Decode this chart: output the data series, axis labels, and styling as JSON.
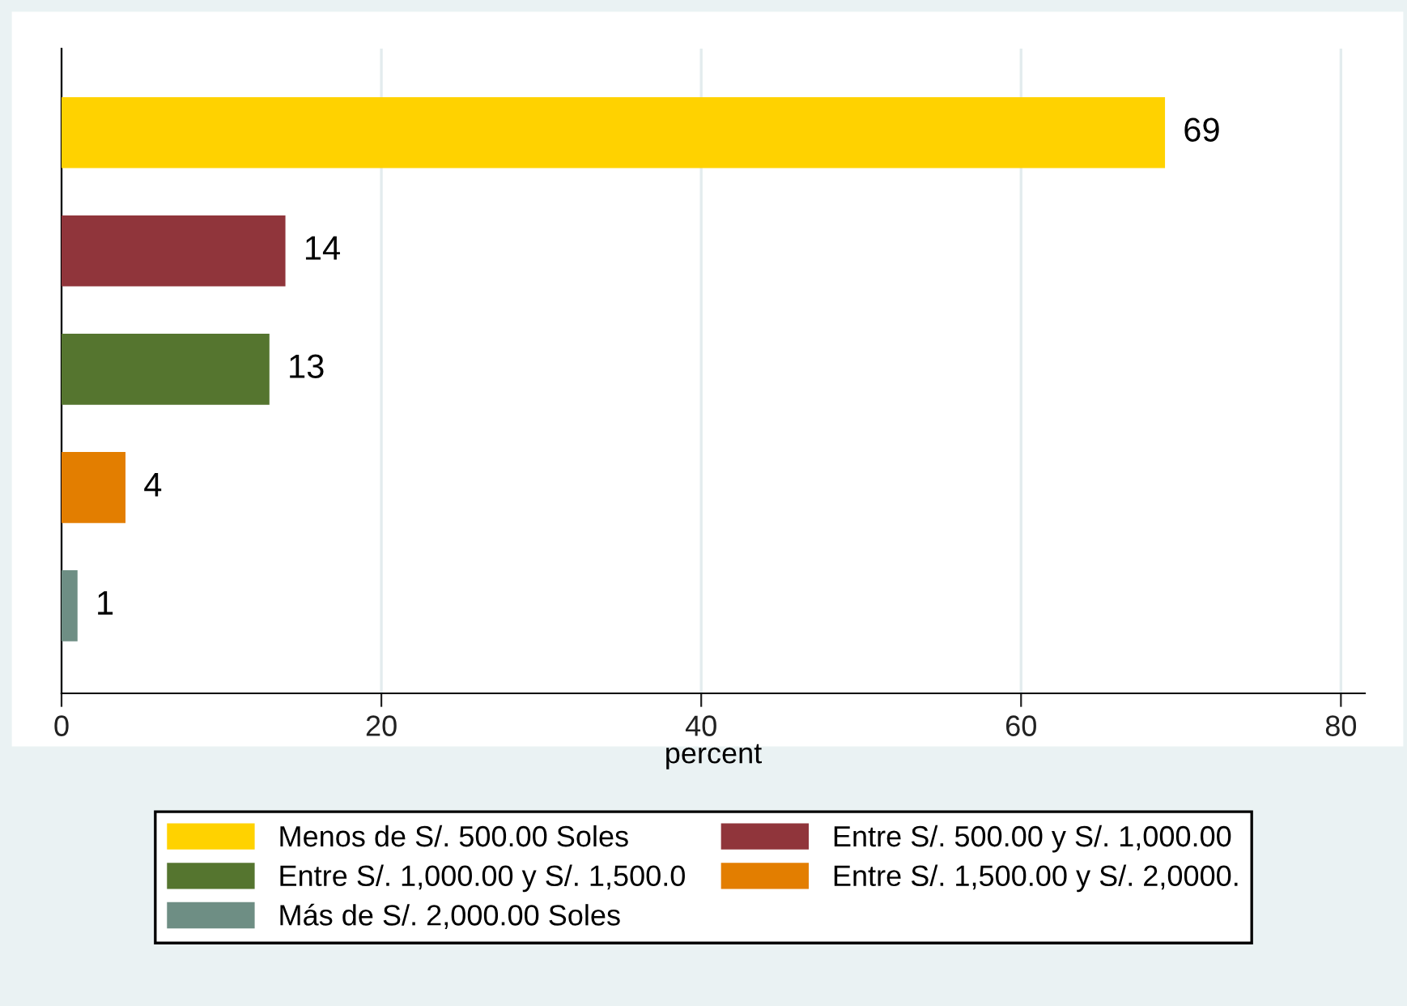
{
  "chart_data": {
    "type": "bar",
    "orientation": "horizontal",
    "xlabel": "percent",
    "categories": [
      null,
      null,
      null,
      null,
      null
    ],
    "series": [
      {
        "name": "Menos de S/. 500.00 Soles",
        "color": "#ffd200",
        "values": [
          69,
          null,
          null,
          null,
          null
        ]
      },
      {
        "name": "Entre S/. 500.00 y S/. 1,000.00",
        "color": "#90353b",
        "values": [
          null,
          14,
          null,
          null,
          null
        ]
      },
      {
        "name": "Entre S/. 1,000.00 y S/. 1,500.0",
        "color": "#55752f",
        "values": [
          null,
          null,
          13,
          null,
          null
        ]
      },
      {
        "name": "Entre S/. 1,500.00 y S/. 2,0000.",
        "color": "#e37e00",
        "values": [
          null,
          null,
          null,
          4,
          null
        ]
      },
      {
        "name": "Más de S/. 2,000.00 Soles",
        "color": "#6e8e84",
        "values": [
          null,
          null,
          null,
          null,
          1
        ]
      }
    ],
    "xlim": [
      0,
      81.5
    ],
    "xticks": [
      0,
      20,
      40,
      60,
      80
    ],
    "grid": "x",
    "legend": "bottom",
    "data_labels": true,
    "tick_labels": "x"
  }
}
